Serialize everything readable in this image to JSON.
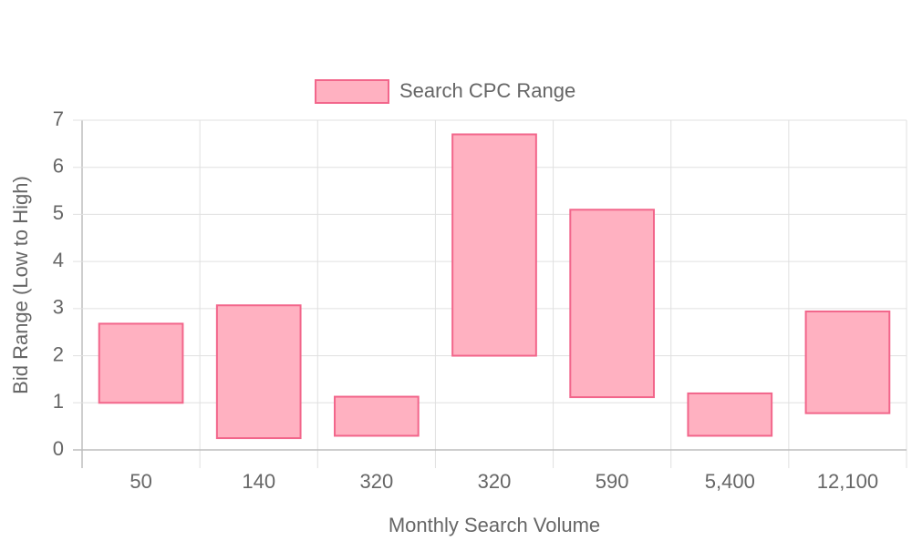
{
  "chart_data": {
    "type": "floating-bar",
    "x_label": "Monthly Search Volume",
    "y_label": "Bid Range (Low to High)",
    "categories": [
      "50",
      "140",
      "320",
      "320",
      "590",
      "5,400",
      "12,100"
    ],
    "series": [
      {
        "name": "Search CPC Range",
        "color": "#ffb1c1",
        "border_color": "#f2668b",
        "values": [
          [
            1.0,
            2.68
          ],
          [
            0.25,
            3.07
          ],
          [
            0.3,
            1.13
          ],
          [
            2.0,
            6.7
          ],
          [
            1.12,
            5.1
          ],
          [
            0.3,
            1.2
          ],
          [
            0.78,
            2.94
          ]
        ]
      }
    ],
    "ylim": [
      0,
      7
    ],
    "yticks": [
      0,
      1,
      2,
      3,
      4,
      5,
      6,
      7
    ],
    "grid": true,
    "legend": "top"
  }
}
